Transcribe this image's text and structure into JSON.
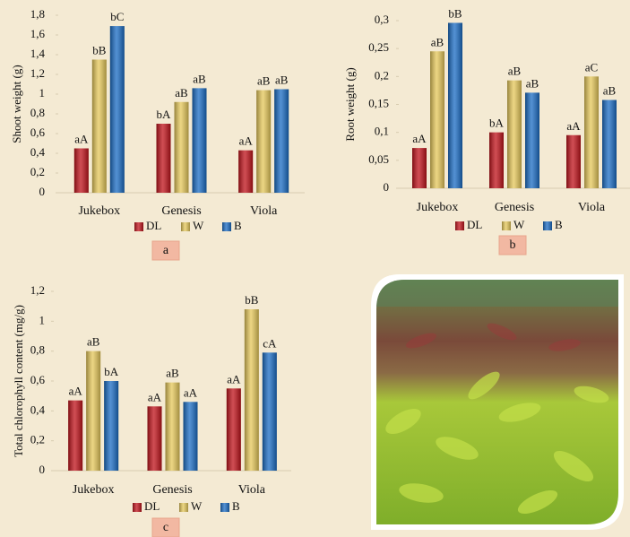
{
  "chart_data": [
    {
      "type": "bar",
      "label": "a",
      "y_label": "Shoot weight (g)",
      "categories": [
        "Jukebox",
        "Genesis",
        "Viola"
      ],
      "series": [
        {
          "name": "DL",
          "color": "#c0121a",
          "values": [
            0.45,
            0.7,
            0.43
          ],
          "letters": [
            "aA",
            "bA",
            "aA"
          ]
        },
        {
          "name": "W",
          "color": "#e6c85a",
          "values": [
            1.35,
            0.92,
            1.04
          ],
          "letters": [
            "bB",
            "aB",
            "aB"
          ]
        },
        {
          "name": "B",
          "color": "#1a6cc4",
          "values": [
            1.69,
            1.06,
            1.05
          ],
          "letters": [
            "bC",
            "aB",
            "aB"
          ]
        }
      ],
      "ylim": [
        0,
        1.8
      ],
      "yticks": [
        0,
        {
          "value": 0.2,
          "label": "0,2"
        },
        {
          "value": 0.4,
          "label": "0,4"
        },
        {
          "value": 0.6,
          "label": "0,6"
        },
        {
          "value": 0.8,
          "label": "0,8"
        },
        1,
        {
          "value": 1.2,
          "label": "1,2"
        },
        {
          "value": 1.4,
          "label": "1,4"
        },
        {
          "value": 1.6,
          "label": "1,6"
        },
        {
          "value": 1.8,
          "label": "1,8"
        }
      ]
    },
    {
      "type": "bar",
      "label": "b",
      "y_label": "Root weight (g)",
      "categories": [
        "Jukebox",
        "Genesis",
        "Viola"
      ],
      "series": [
        {
          "name": "DL",
          "color": "#c0121a",
          "values": [
            0.072,
            0.1,
            0.095
          ],
          "letters": [
            "aA",
            "bA",
            "aA"
          ]
        },
        {
          "name": "W",
          "color": "#e6c85a",
          "values": [
            0.245,
            0.193,
            0.2
          ],
          "letters": [
            "aB",
            "aB",
            "aC"
          ]
        },
        {
          "name": "B",
          "color": "#1a6cc4",
          "values": [
            0.296,
            0.171,
            0.158
          ],
          "letters": [
            "bB",
            "aB",
            "aB"
          ]
        }
      ],
      "ylim": [
        0,
        0.3
      ],
      "yticks": [
        0,
        {
          "value": 0.05,
          "label": "0,05"
        },
        {
          "value": 0.1,
          "label": "0,1"
        },
        {
          "value": 0.15,
          "label": "0,15"
        },
        {
          "value": 0.2,
          "label": "0,2"
        },
        {
          "value": 0.25,
          "label": "0,25"
        },
        {
          "value": 0.3,
          "label": "0,3"
        }
      ]
    },
    {
      "type": "bar",
      "label": "c",
      "y_label": "Total chlorophyll content (mg/g)",
      "categories": [
        "Jukebox",
        "Genesis",
        "Viola"
      ],
      "series": [
        {
          "name": "DL",
          "color": "#c0121a",
          "values": [
            0.47,
            0.43,
            0.55
          ],
          "letters": [
            "aA",
            "aA",
            "aA"
          ]
        },
        {
          "name": "W",
          "color": "#e6c85a",
          "values": [
            0.8,
            0.59,
            1.08
          ],
          "letters": [
            "aB",
            "aB",
            "bB"
          ]
        },
        {
          "name": "B",
          "color": "#1a6cc4",
          "values": [
            0.6,
            0.46,
            0.79
          ],
          "letters": [
            "bA",
            "aA",
            "cA"
          ]
        }
      ],
      "ylim": [
        0,
        1.2
      ],
      "yticks": [
        0,
        {
          "value": 0.2,
          "label": "0,2"
        },
        {
          "value": 0.4,
          "label": "0,4"
        },
        {
          "value": 0.6,
          "label": "0,6"
        },
        {
          "value": 0.8,
          "label": "0,8"
        },
        1,
        {
          "value": 1.2,
          "label": "1,2"
        }
      ]
    }
  ]
}
